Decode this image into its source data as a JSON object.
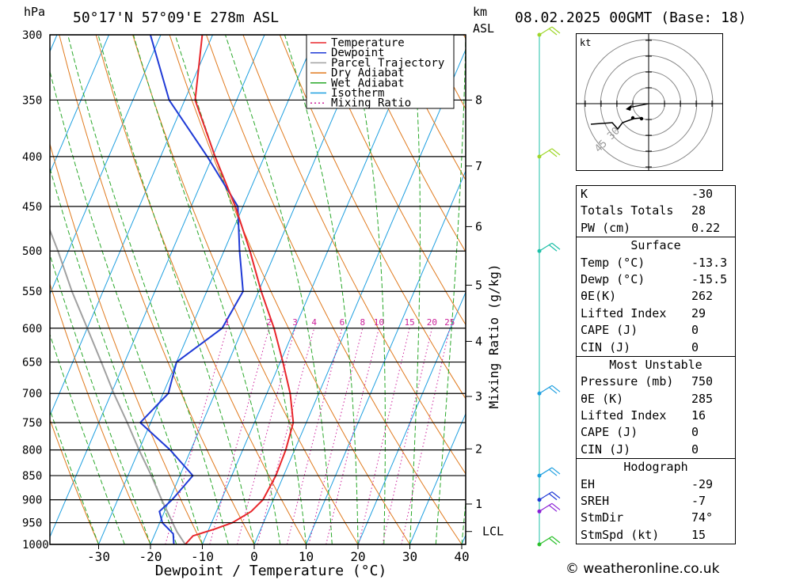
{
  "header": {
    "pressure_unit": "hPa",
    "location": "50°17'N  57°09'E  278m  ASL",
    "km_label": "km",
    "asl_label": "ASL",
    "datetime": "08.02.2025  00GMT  (Base: 18)"
  },
  "legend": [
    {
      "label": "Temperature",
      "color": "#e8262b",
      "style": "solid"
    },
    {
      "label": "Dewpoint",
      "color": "#1f3ad6",
      "style": "solid"
    },
    {
      "label": "Parcel Trajectory",
      "color": "#a0a0a0",
      "style": "solid"
    },
    {
      "label": "Dry Adiabat",
      "color": "#e07a1e",
      "style": "solid"
    },
    {
      "label": "Wet Adiabat",
      "color": "#2aa82a",
      "style": "solid"
    },
    {
      "label": "Isotherm",
      "color": "#1e9fe0",
      "style": "solid"
    },
    {
      "label": "Mixing Ratio",
      "color": "#cc1f9a",
      "style": "dotted"
    }
  ],
  "chart_data": {
    "type": "skew-t",
    "xlabel": "Dewpoint / Temperature (°C)",
    "ylabel": "hPa",
    "y2label": "Mixing Ratio (g/kg)",
    "xlim": [
      -40,
      40
    ],
    "ylim": [
      1000,
      300
    ],
    "x_ticks": [
      -30,
      -20,
      -10,
      0,
      10,
      20,
      30,
      40
    ],
    "pressure_levels": [
      300,
      350,
      400,
      450,
      500,
      550,
      600,
      650,
      700,
      750,
      800,
      850,
      900,
      950,
      1000
    ],
    "km_ticks": [
      {
        "label": "8",
        "p": 350
      },
      {
        "label": "7",
        "p": 409
      },
      {
        "label": "6",
        "p": 472
      },
      {
        "label": "5",
        "p": 542
      },
      {
        "label": "4",
        "p": 619
      },
      {
        "label": "3",
        "p": 705
      },
      {
        "label": "2",
        "p": 798
      },
      {
        "label": "1",
        "p": 909
      },
      {
        "label": "LCL",
        "p": 970
      }
    ],
    "mixing_ratio_labels": [
      "1",
      "2",
      "3",
      "4",
      "6",
      "8",
      "10",
      "15",
      "20",
      "25"
    ],
    "temperature": [
      {
        "p": 1000,
        "t": -13.3
      },
      {
        "p": 980,
        "t": -12.5
      },
      {
        "p": 965,
        "t": -9.0
      },
      {
        "p": 950,
        "t": -6.0
      },
      {
        "p": 925,
        "t": -3.3
      },
      {
        "p": 900,
        "t": -2.0
      },
      {
        "p": 850,
        "t": -1.5
      },
      {
        "p": 800,
        "t": -1.7
      },
      {
        "p": 750,
        "t": -2.5
      },
      {
        "p": 700,
        "t": -5.5
      },
      {
        "p": 650,
        "t": -9.5
      },
      {
        "p": 600,
        "t": -14.0
      },
      {
        "p": 550,
        "t": -19.5
      },
      {
        "p": 500,
        "t": -25.0
      },
      {
        "p": 450,
        "t": -31.5
      },
      {
        "p": 400,
        "t": -39.5
      },
      {
        "p": 350,
        "t": -48.0
      },
      {
        "p": 300,
        "t": -52.0
      }
    ],
    "dewpoint": [
      {
        "p": 1000,
        "t": -15.5
      },
      {
        "p": 975,
        "t": -16.5
      },
      {
        "p": 950,
        "t": -19.5
      },
      {
        "p": 925,
        "t": -21.0
      },
      {
        "p": 900,
        "t": -19.5
      },
      {
        "p": 850,
        "t": -17.5
      },
      {
        "p": 800,
        "t": -24.0
      },
      {
        "p": 750,
        "t": -32.0
      },
      {
        "p": 700,
        "t": -29.0
      },
      {
        "p": 650,
        "t": -30.0
      },
      {
        "p": 600,
        "t": -24.0
      },
      {
        "p": 550,
        "t": -23.0
      },
      {
        "p": 500,
        "t": -27.0
      },
      {
        "p": 450,
        "t": -31.0
      },
      {
        "p": 400,
        "t": -41.0
      },
      {
        "p": 350,
        "t": -53.0
      },
      {
        "p": 300,
        "t": -62.0
      }
    ],
    "parcel": [
      {
        "p": 1000,
        "t": -13.3
      },
      {
        "p": 970,
        "t": -16.0
      },
      {
        "p": 900,
        "t": -21.5
      },
      {
        "p": 850,
        "t": -25.5
      },
      {
        "p": 800,
        "t": -30.0
      },
      {
        "p": 750,
        "t": -34.5
      },
      {
        "p": 700,
        "t": -39.5
      },
      {
        "p": 650,
        "t": -44.5
      },
      {
        "p": 600,
        "t": -50.0
      },
      {
        "p": 550,
        "t": -56.0
      },
      {
        "p": 500,
        "t": -62.0
      },
      {
        "p": 450,
        "t": -69.0
      }
    ],
    "wind_barbs": [
      {
        "p": 300,
        "color": "#9fd62a"
      },
      {
        "p": 400,
        "color": "#9fd62a"
      },
      {
        "p": 500,
        "color": "#1fc0a8"
      },
      {
        "p": 700,
        "color": "#1e9fe0"
      },
      {
        "p": 850,
        "color": "#1e9fe0"
      },
      {
        "p": 900,
        "color": "#1f3ad6"
      },
      {
        "p": 925,
        "color": "#8a1fd6"
      },
      {
        "p": 1000,
        "color": "#2ac02a"
      }
    ]
  },
  "hodograph": {
    "unit": "kt",
    "ring_labels": [
      "45",
      "30"
    ]
  },
  "indices": {
    "top": [
      {
        "key": "K",
        "value": "-30"
      },
      {
        "key": "Totals Totals",
        "value": "28"
      },
      {
        "key": "PW (cm)",
        "value": "0.22"
      }
    ],
    "surface": {
      "title": "Surface",
      "rows": [
        {
          "key": "Temp (°C)",
          "value": "-13.3"
        },
        {
          "key": "Dewp (°C)",
          "value": "-15.5"
        },
        {
          "key": "θE(K)",
          "value": "262"
        },
        {
          "key": "Lifted Index",
          "value": "29"
        },
        {
          "key": "CAPE (J)",
          "value": "0"
        },
        {
          "key": "CIN (J)",
          "value": "0"
        }
      ]
    },
    "most_unstable": {
      "title": "Most Unstable",
      "rows": [
        {
          "key": "Pressure (mb)",
          "value": "750"
        },
        {
          "key": "θE (K)",
          "value": "285"
        },
        {
          "key": "Lifted Index",
          "value": "16"
        },
        {
          "key": "CAPE (J)",
          "value": "0"
        },
        {
          "key": "CIN (J)",
          "value": "0"
        }
      ]
    },
    "hodograph": {
      "title": "Hodograph",
      "rows": [
        {
          "key": "EH",
          "value": "-29"
        },
        {
          "key": "SREH",
          "value": "-7"
        },
        {
          "key": "StmDir",
          "value": "74°"
        },
        {
          "key": "StmSpd (kt)",
          "value": "15"
        }
      ]
    }
  },
  "footer": {
    "copyright": "© weatheronline.co.uk"
  }
}
